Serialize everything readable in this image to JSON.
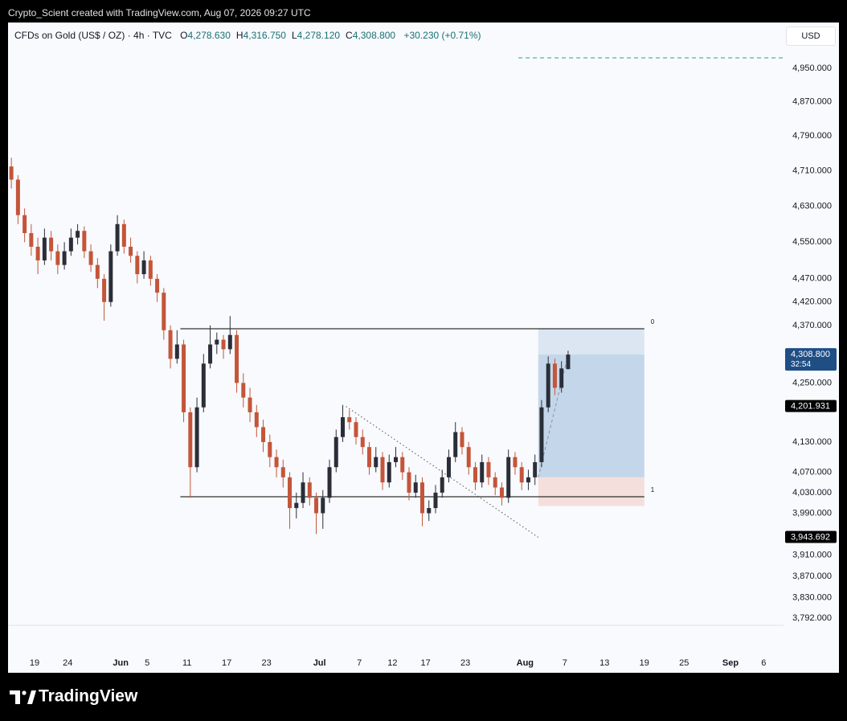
{
  "caption": "Crypto_Scient created with TradingView.com, Aug 07, 2026 09:27 UTC",
  "brand": "TradingView",
  "chart_data": {
    "type": "candlestick",
    "symbol": "CFDs on Gold (US$ / OZ) · 4h · TVC",
    "legend": [
      {
        "key": "O",
        "label": "4,278.630"
      },
      {
        "key": "H",
        "label": "4,316.750"
      },
      {
        "key": "L",
        "label": "4,278.120"
      },
      {
        "key": "C",
        "label": "4,308.800"
      }
    ],
    "change": "+30.230 (+0.71%)",
    "currency": "USD",
    "log_scale": true,
    "grid": false,
    "up_color": "#2a2e39",
    "down_color": "#c4553a",
    "xlim": [
      "2026-05-15",
      "2026-09-09"
    ],
    "xticks": [
      {
        "value": "2026-05-19",
        "label": "19"
      },
      {
        "value": "2026-05-24",
        "label": "24"
      },
      {
        "value": "2026-06-01",
        "label": "Jun"
      },
      {
        "value": "2026-06-05",
        "label": "5"
      },
      {
        "value": "2026-06-11",
        "label": "11"
      },
      {
        "value": "2026-06-17",
        "label": "17"
      },
      {
        "value": "2026-06-23",
        "label": "23"
      },
      {
        "value": "2026-07-01",
        "label": "Jul"
      },
      {
        "value": "2026-07-07",
        "label": "7"
      },
      {
        "value": "2026-07-12",
        "label": "12"
      },
      {
        "value": "2026-07-17",
        "label": "17"
      },
      {
        "value": "2026-07-23",
        "label": "23"
      },
      {
        "value": "2026-08-01",
        "label": "Aug"
      },
      {
        "value": "2026-08-07",
        "label": "7"
      },
      {
        "value": "2026-08-13",
        "label": "13"
      },
      {
        "value": "2026-08-19",
        "label": "19"
      },
      {
        "value": "2026-08-25",
        "label": "25"
      },
      {
        "value": "2026-09-01",
        "label": "Sep"
      },
      {
        "value": "2026-09-06",
        "label": "6"
      }
    ],
    "ylim": [
      3779,
      5061
    ],
    "yticks": [
      {
        "value": 4950,
        "label": "4,950.000"
      },
      {
        "value": 4870,
        "label": "4,870.000"
      },
      {
        "value": 4790,
        "label": "4,790.000"
      },
      {
        "value": 4710,
        "label": "4,710.000"
      },
      {
        "value": 4630,
        "label": "4,630.000"
      },
      {
        "value": 4550,
        "label": "4,550.000"
      },
      {
        "value": 4470,
        "label": "4,470.000"
      },
      {
        "value": 4420,
        "label": "4,420.000"
      },
      {
        "value": 4370,
        "label": "4,370.000"
      },
      {
        "value": 4250,
        "label": "4,250.000"
      },
      {
        "value": 4130,
        "label": "4,130.000"
      },
      {
        "value": 4070,
        "label": "4,070.000"
      },
      {
        "value": 4030,
        "label": "4,030.000"
      },
      {
        "value": 3990,
        "label": "3,990.000"
      },
      {
        "value": 3910,
        "label": "3,910.000"
      },
      {
        "value": 3870,
        "label": "3,870.000"
      },
      {
        "value": 3830,
        "label": "3,830.000"
      },
      {
        "value": 3792,
        "label": "3,792.000"
      }
    ],
    "price_badges": [
      {
        "value": 4308.8,
        "label": "4,308.800",
        "countdown": "32:54",
        "color": "#1f4e85"
      },
      {
        "value": 4201.931,
        "label": "4,201.931",
        "color": "#000000"
      },
      {
        "value": 3943.692,
        "label": "3,943.692",
        "color": "#000000"
      }
    ],
    "range_lines": [
      {
        "price": 4363,
        "start": "2026-06-10",
        "end": "2026-08-19",
        "label": "0"
      },
      {
        "price": 4022,
        "start": "2026-06-10",
        "end": "2026-08-19",
        "label": "1"
      }
    ],
    "target_line": {
      "price": 4975,
      "start": "2026-07-31",
      "end": "2026-09-09",
      "color": "#2a9d8f"
    },
    "trendline": {
      "start": "2026-07-05",
      "start_price": 4201.931,
      "end": "2026-08-03",
      "end_price": 3943.692
    },
    "position": {
      "start": "2026-08-03",
      "end": "2026-08-19",
      "entry": 4060,
      "target": 4363,
      "stop": 4004
    },
    "x": [
      "2026-05-15",
      "2026-05-16",
      "2026-05-17",
      "2026-05-18",
      "2026-05-19",
      "2026-05-20",
      "2026-05-21",
      "2026-05-22",
      "2026-05-23",
      "2026-05-24",
      "2026-05-25",
      "2026-05-26",
      "2026-05-27",
      "2026-05-28",
      "2026-05-29",
      "2026-05-30",
      "2026-05-31",
      "2026-06-01",
      "2026-06-02",
      "2026-06-03",
      "2026-06-04",
      "2026-06-05",
      "2026-06-06",
      "2026-06-07",
      "2026-06-08",
      "2026-06-09",
      "2026-06-10",
      "2026-06-11",
      "2026-06-12",
      "2026-06-13",
      "2026-06-14",
      "2026-06-15",
      "2026-06-16",
      "2026-06-17",
      "2026-06-18",
      "2026-06-19",
      "2026-06-20",
      "2026-06-21",
      "2026-06-22",
      "2026-06-23",
      "2026-06-24",
      "2026-06-25",
      "2026-06-26",
      "2026-06-27",
      "2026-06-28",
      "2026-06-29",
      "2026-06-30",
      "2026-07-01",
      "2026-07-02",
      "2026-07-03",
      "2026-07-04",
      "2026-07-05",
      "2026-07-06",
      "2026-07-07",
      "2026-07-08",
      "2026-07-09",
      "2026-07-10",
      "2026-07-11",
      "2026-07-12",
      "2026-07-13",
      "2026-07-14",
      "2026-07-15",
      "2026-07-16",
      "2026-07-17",
      "2026-07-18",
      "2026-07-19",
      "2026-07-20",
      "2026-07-21",
      "2026-07-22",
      "2026-07-23",
      "2026-07-24",
      "2026-07-25",
      "2026-07-26",
      "2026-07-27",
      "2026-07-28",
      "2026-07-29",
      "2026-07-30",
      "2026-07-31",
      "2026-08-01",
      "2026-08-02",
      "2026-08-03",
      "2026-08-04",
      "2026-08-05",
      "2026-08-06",
      "2026-08-07"
    ],
    "open": [
      4720,
      4690,
      4610,
      4570,
      4540,
      4510,
      4560,
      4530,
      4500,
      4530,
      4560,
      4575,
      4530,
      4500,
      4470,
      4420,
      4530,
      4590,
      4540,
      4520,
      4480,
      4510,
      4470,
      4440,
      4360,
      4300,
      4330,
      4190,
      4080,
      4200,
      4290,
      4330,
      4340,
      4320,
      4350,
      4250,
      4220,
      4190,
      4160,
      4130,
      4100,
      4080,
      4060,
      4000,
      4010,
      4050,
      4020,
      3990,
      4020,
      4080,
      4140,
      4180,
      4170,
      4140,
      4120,
      4080,
      4100,
      4050,
      4090,
      4100,
      4070,
      4030,
      4050,
      3990,
      4000,
      4030,
      4060,
      4100,
      4150,
      4120,
      4080,
      4050,
      4090,
      4060,
      4040,
      4020,
      4100,
      4080,
      4050,
      4060,
      4090,
      4200,
      4290,
      4240,
      4278.63
    ],
    "high": [
      4740,
      4700,
      4625,
      4590,
      4560,
      4580,
      4575,
      4545,
      4550,
      4580,
      4590,
      4585,
      4545,
      4515,
      4480,
      4545,
      4610,
      4600,
      4560,
      4530,
      4530,
      4520,
      4480,
      4450,
      4370,
      4360,
      4340,
      4200,
      4220,
      4310,
      4370,
      4355,
      4350,
      4390,
      4360,
      4270,
      4240,
      4205,
      4175,
      4145,
      4115,
      4095,
      4070,
      4030,
      4070,
      4060,
      4030,
      4035,
      4095,
      4155,
      4205,
      4195,
      4180,
      4155,
      4130,
      4120,
      4110,
      4105,
      4120,
      4110,
      4080,
      4065,
      4060,
      4015,
      4045,
      4075,
      4115,
      4170,
      4160,
      4130,
      4090,
      4105,
      4100,
      4070,
      4050,
      4115,
      4110,
      4090,
      4075,
      4105,
      4215,
      4305,
      4300,
      4295,
      4316.75
    ],
    "low": [
      4670,
      4590,
      4550,
      4520,
      4480,
      4500,
      4510,
      4480,
      4490,
      4520,
      4545,
      4515,
      4485,
      4450,
      4380,
      4410,
      4520,
      4525,
      4505,
      4460,
      4470,
      4455,
      4420,
      4340,
      4280,
      4290,
      4170,
      4020,
      4070,
      4190,
      4280,
      4310,
      4300,
      4310,
      4230,
      4200,
      4170,
      4140,
      4110,
      4080,
      4060,
      4040,
      3960,
      3980,
      4000,
      4005,
      3950,
      3960,
      4010,
      4070,
      4130,
      4155,
      4125,
      4105,
      4065,
      4070,
      4035,
      4040,
      4080,
      4055,
      4015,
      4020,
      3965,
      3975,
      3990,
      4020,
      4050,
      4090,
      4105,
      4065,
      4035,
      4040,
      4045,
      4025,
      4005,
      4010,
      4065,
      4035,
      4035,
      4045,
      4080,
      4190,
      4225,
      4230,
      4278.12
    ],
    "close": [
      4690,
      4610,
      4570,
      4540,
      4510,
      4560,
      4530,
      4500,
      4530,
      4560,
      4575,
      4530,
      4500,
      4470,
      4420,
      4530,
      4590,
      4540,
      4520,
      4480,
      4510,
      4470,
      4440,
      4360,
      4300,
      4330,
      4190,
      4080,
      4200,
      4290,
      4330,
      4340,
      4320,
      4350,
      4250,
      4220,
      4190,
      4160,
      4130,
      4100,
      4080,
      4060,
      4000,
      4010,
      4050,
      4020,
      3990,
      4020,
      4080,
      4140,
      4180,
      4170,
      4140,
      4120,
      4080,
      4100,
      4050,
      4090,
      4100,
      4070,
      4030,
      4050,
      3990,
      4000,
      4030,
      4060,
      4100,
      4150,
      4120,
      4080,
      4050,
      4090,
      4060,
      4040,
      4020,
      4100,
      4080,
      4050,
      4060,
      4090,
      4200,
      4290,
      4240,
      4280,
      4308.8
    ]
  }
}
